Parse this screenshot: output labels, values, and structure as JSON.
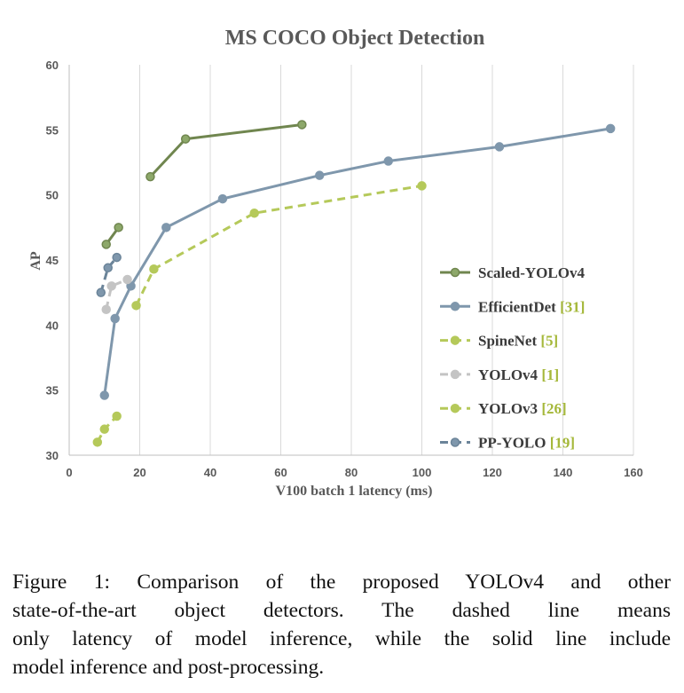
{
  "chart_data": {
    "type": "line",
    "title": "MS COCO Object Detection",
    "xlabel": "V100 batch 1 latency (ms)",
    "ylabel": "AP",
    "xlim": [
      0,
      160
    ],
    "ylim": [
      30,
      60
    ],
    "xticks": [
      0,
      20,
      40,
      60,
      80,
      100,
      120,
      140,
      160
    ],
    "yticks": [
      30,
      35,
      40,
      45,
      50,
      55,
      60
    ],
    "grid": "vertical",
    "legend_position": "right",
    "series": [
      {
        "name": "Scaled-YOLOv4",
        "ref": "",
        "style": "solid",
        "color": "#70864f",
        "marker_fill": "#8da86a",
        "x": [
          23.0,
          33.0,
          66.0
        ],
        "y": [
          51.4,
          54.3,
          55.4
        ]
      },
      {
        "name": "Scaled-YOLOv4",
        "ref": "",
        "style": "solid",
        "color": "#70864f",
        "marker_fill": "#8da86a",
        "in_legend": false,
        "x": [
          10.5,
          14.0
        ],
        "y": [
          46.2,
          47.5
        ]
      },
      {
        "name": "EfficientDet",
        "ref": "[31]",
        "style": "solid",
        "color": "#7f97ac",
        "marker_fill": "#7f97ac",
        "x": [
          10.0,
          13.0,
          17.5,
          27.5,
          43.5,
          71.0,
          90.5,
          122.0,
          153.5
        ],
        "y": [
          34.6,
          40.5,
          43.0,
          47.5,
          49.7,
          51.5,
          52.6,
          53.7,
          55.1
        ]
      },
      {
        "name": "SpineNet",
        "ref": "[5]",
        "style": "dashed",
        "color": "#b5c95a",
        "marker_fill": "#b5c95a",
        "x": [
          19.0,
          24.0,
          52.5,
          100.0
        ],
        "y": [
          41.5,
          44.3,
          48.6,
          50.7
        ]
      },
      {
        "name": "YOLOv4",
        "ref": "[1]",
        "style": "dashed",
        "color": "#c4c4c4",
        "marker_fill": "#c4c4c4",
        "x": [
          10.5,
          12.0,
          16.5
        ],
        "y": [
          41.2,
          43.0,
          43.5
        ]
      },
      {
        "name": "YOLOv3",
        "ref": "[26]",
        "style": "dashed",
        "color": "#b5c95a",
        "marker_fill": "#b5c95a",
        "x": [
          8.0,
          10.0,
          13.5
        ],
        "y": [
          31.0,
          32.0,
          33.0
        ]
      },
      {
        "name": "PP-YOLO",
        "ref": "[19]",
        "style": "dashed",
        "color": "#6b8499",
        "marker_fill": "#7f97ac",
        "x": [
          9.0,
          11.0,
          13.5
        ],
        "y": [
          42.5,
          44.4,
          45.2
        ]
      }
    ]
  },
  "caption": {
    "lines": [
      "Figure 1: Comparison of the proposed YOLOv4 and other",
      "state-of-the-art object detectors.  The dashed line means",
      "only latency of model inference, while the solid line include",
      "model inference and post-processing."
    ]
  }
}
